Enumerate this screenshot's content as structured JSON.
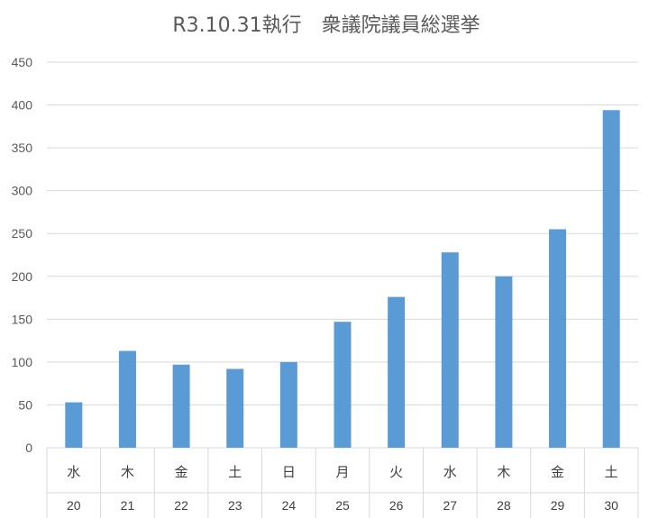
{
  "chart_data": {
    "type": "bar",
    "title": "R3.10.31執行　衆議院議員総選挙",
    "categories": [
      "水",
      "木",
      "金",
      "土",
      "日",
      "月",
      "火",
      "水",
      "木",
      "金",
      "土"
    ],
    "categories_day": [
      "20",
      "21",
      "22",
      "23",
      "24",
      "25",
      "26",
      "27",
      "28",
      "29",
      "30"
    ],
    "values": [
      53,
      113,
      97,
      92,
      100,
      147,
      176,
      228,
      200,
      255,
      394
    ],
    "ylim": [
      0,
      450
    ],
    "yticks": [
      "0",
      "50",
      "100",
      "150",
      "200",
      "250",
      "300",
      "350",
      "400",
      "450"
    ],
    "grid": true,
    "bar_color": "#5B9BD5",
    "grid_color": "#D9D9D9"
  }
}
